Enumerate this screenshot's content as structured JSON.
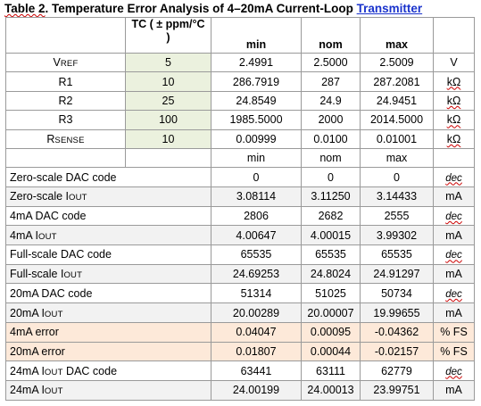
{
  "title": {
    "prefix": "Table 2",
    "main": ". Temperature Error Analysis of 4–20mA Current-Loop ",
    "link": "Transmitter"
  },
  "header": {
    "tc": "TC ( ± ppm/°C )",
    "min": "min",
    "nom": "nom",
    "max": "max"
  },
  "components": [
    {
      "label_main": "V",
      "label_sub": "REF",
      "tc": "5",
      "min": "2.4991",
      "nom": "2.5000",
      "max": "2.5009",
      "unit": "V"
    },
    {
      "label_main": "R1",
      "label_sub": "",
      "tc": "10",
      "min": "286.7919",
      "nom": "287",
      "max": "287.2081",
      "unit": "kΩ"
    },
    {
      "label_main": "R2",
      "label_sub": "",
      "tc": "25",
      "min": "24.8549",
      "nom": "24.9",
      "max": "24.9451",
      "unit": "kΩ"
    },
    {
      "label_main": "R3",
      "label_sub": "",
      "tc": "100",
      "min": "1985.5000",
      "nom": "2000",
      "max": "2014.5000",
      "unit": "kΩ"
    },
    {
      "label_main": "R",
      "label_sub": "SENSE",
      "tc": "10",
      "min": "0.00999",
      "nom": "0.0100",
      "max": "0.01001",
      "unit": "kΩ"
    }
  ],
  "subheader": {
    "min": "min",
    "nom": "nom",
    "max": "max"
  },
  "rows": [
    {
      "label": "Zero-scale DAC code",
      "min": "0",
      "nom": "0",
      "max": "0",
      "unit": "dec"
    },
    {
      "label": "Zero-scale IOUT",
      "min": "3.08114",
      "nom": "3.11250",
      "max": "3.14433",
      "unit": "mA"
    },
    {
      "label": "4mA DAC code",
      "min": "2806",
      "nom": "2682",
      "max": "2555",
      "unit": "dec"
    },
    {
      "label": "4mA IOUT",
      "min": "4.00647",
      "nom": "4.00015",
      "max": "3.99302",
      "unit": "mA"
    },
    {
      "label": "Full-scale DAC code",
      "min": "65535",
      "nom": "65535",
      "max": "65535",
      "unit": "dec"
    },
    {
      "label": "Full-scale IOUT",
      "min": "24.69253",
      "nom": "24.8024",
      "max": "24.91297",
      "unit": "mA"
    },
    {
      "label": "20mA DAC code",
      "min": "51314",
      "nom": "51025",
      "max": "50734",
      "unit": "dec"
    },
    {
      "label": "20mA IOUT",
      "min": "20.00289",
      "nom": "20.00007",
      "max": "19.99655",
      "unit": "mA"
    },
    {
      "label": "4mA error",
      "min": "0.04047",
      "nom": "0.00095",
      "max": "-0.04362",
      "unit": "% FS"
    },
    {
      "label": "20mA error",
      "min": "0.01807",
      "nom": "0.00044",
      "max": "-0.02157",
      "unit": "% FS"
    },
    {
      "label": "24mA IOUT DAC code",
      "min": "63441",
      "nom": "63111",
      "max": "62779",
      "unit": "dec"
    },
    {
      "label": "24mA IOUT",
      "min": "24.00199",
      "nom": "24.00013",
      "max": "23.99751",
      "unit": "mA"
    }
  ],
  "colors": {
    "green": "#ebf1de",
    "gray": "#f2f2f2",
    "peach": "#fde9d9",
    "link": "#1a33cc"
  }
}
